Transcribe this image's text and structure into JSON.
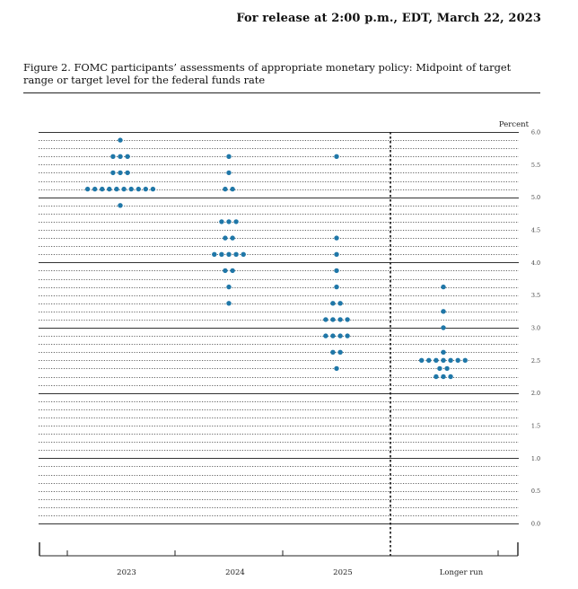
{
  "release_line": "For release at 2:00 p.m., EDT, March 22, 2023",
  "caption": "Figure 2.  FOMC participants’ assessments of appropriate monetary policy: Midpoint of target range or target level for the federal funds rate",
  "colors": {
    "dot": "#1f77a8",
    "grid": "#333333"
  },
  "chart_data": {
    "type": "scatter",
    "title": "",
    "ylabel": "Percent",
    "xlabel": "",
    "ylim": [
      0,
      6.0
    ],
    "grid": "horizontal lines every 0.125 (dotted); solid at whole percentages",
    "y_ticks": [
      "0.0",
      "0.5",
      "1.0",
      "1.5",
      "2.0",
      "2.5",
      "3.0",
      "3.5",
      "4.0",
      "4.5",
      "5.0",
      "5.5",
      "6.0"
    ],
    "categories": [
      "2023",
      "2024",
      "2025",
      "Longer run"
    ],
    "series": [
      {
        "category": "2023",
        "points": [
          {
            "y": 5.875,
            "count": 1
          },
          {
            "y": 5.625,
            "count": 3
          },
          {
            "y": 5.375,
            "count": 3
          },
          {
            "y": 5.125,
            "count": 10
          },
          {
            "y": 4.875,
            "count": 1
          }
        ]
      },
      {
        "category": "2024",
        "points": [
          {
            "y": 5.625,
            "count": 1
          },
          {
            "y": 5.375,
            "count": 1
          },
          {
            "y": 5.125,
            "count": 2
          },
          {
            "y": 4.625,
            "count": 3
          },
          {
            "y": 4.375,
            "count": 2
          },
          {
            "y": 4.125,
            "count": 5
          },
          {
            "y": 3.875,
            "count": 2
          },
          {
            "y": 3.625,
            "count": 1
          },
          {
            "y": 3.375,
            "count": 1
          }
        ]
      },
      {
        "category": "2025",
        "points": [
          {
            "y": 5.625,
            "count": 1
          },
          {
            "y": 4.375,
            "count": 1
          },
          {
            "y": 4.125,
            "count": 1
          },
          {
            "y": 3.875,
            "count": 1
          },
          {
            "y": 3.625,
            "count": 1
          },
          {
            "y": 3.375,
            "count": 2
          },
          {
            "y": 3.125,
            "count": 4
          },
          {
            "y": 2.875,
            "count": 4
          },
          {
            "y": 2.625,
            "count": 2
          },
          {
            "y": 2.375,
            "count": 1
          }
        ]
      },
      {
        "category": "Longer run",
        "points": [
          {
            "y": 3.625,
            "count": 1
          },
          {
            "y": 3.25,
            "count": 1
          },
          {
            "y": 3.0,
            "count": 1
          },
          {
            "y": 2.625,
            "count": 1
          },
          {
            "y": 2.5,
            "count": 7
          },
          {
            "y": 2.375,
            "count": 2
          },
          {
            "y": 2.25,
            "count": 3
          }
        ]
      }
    ]
  }
}
